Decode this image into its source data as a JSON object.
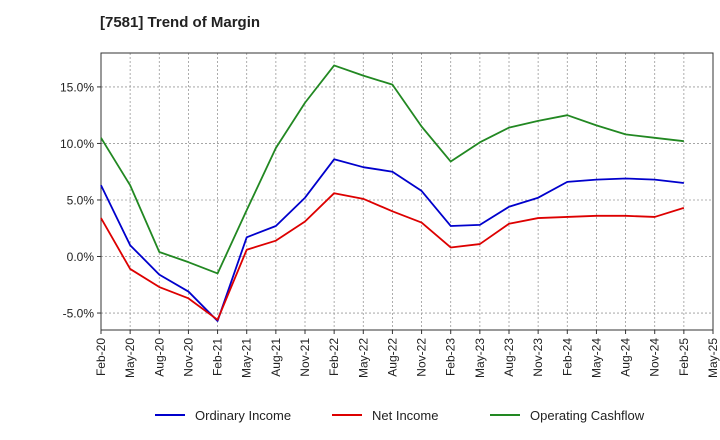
{
  "chart_data": {
    "type": "line",
    "title": "[7581]  Trend of Margin",
    "xlabel": "",
    "ylabel": "",
    "x": [
      "Feb-20",
      "May-20",
      "Aug-20",
      "Nov-20",
      "Feb-21",
      "May-21",
      "Aug-21",
      "Nov-21",
      "Feb-22",
      "May-22",
      "Aug-22",
      "Nov-22",
      "Feb-23",
      "May-23",
      "Aug-23",
      "Nov-23",
      "Feb-24",
      "May-24",
      "Aug-24",
      "Nov-24",
      "Feb-25",
      "May-25"
    ],
    "ylim": [
      -6.5,
      18.0
    ],
    "yticks": [
      -5.0,
      0.0,
      5.0,
      10.0,
      15.0
    ],
    "ytick_labels": [
      "-5.0%",
      "0.0%",
      "5.0%",
      "10.0%",
      "15.0%"
    ],
    "grid": true,
    "legend_position": "bottom",
    "series": [
      {
        "name": "Ordinary Income",
        "color": "#0000cc",
        "values": [
          6.3,
          1.0,
          -1.6,
          -3.1,
          -5.7,
          1.7,
          2.7,
          5.2,
          8.6,
          7.9,
          7.5,
          5.8,
          2.7,
          2.8,
          4.4,
          5.2,
          6.6,
          6.8,
          6.9,
          6.8,
          6.5,
          null
        ]
      },
      {
        "name": "Net Income",
        "color": "#dd0000",
        "values": [
          3.4,
          -1.1,
          -2.7,
          -3.7,
          -5.6,
          0.6,
          1.4,
          3.1,
          5.6,
          5.1,
          4.0,
          3.0,
          0.8,
          1.1,
          2.9,
          3.4,
          3.5,
          3.6,
          3.6,
          3.5,
          4.3,
          null
        ]
      },
      {
        "name": "Operating Cashflow",
        "color": "#228822",
        "values": [
          10.5,
          6.3,
          0.4,
          -0.5,
          -1.5,
          4.1,
          9.6,
          13.6,
          16.9,
          16.0,
          15.2,
          11.5,
          8.4,
          10.1,
          11.4,
          12.0,
          12.5,
          11.6,
          10.8,
          10.5,
          10.2,
          null
        ]
      }
    ]
  }
}
